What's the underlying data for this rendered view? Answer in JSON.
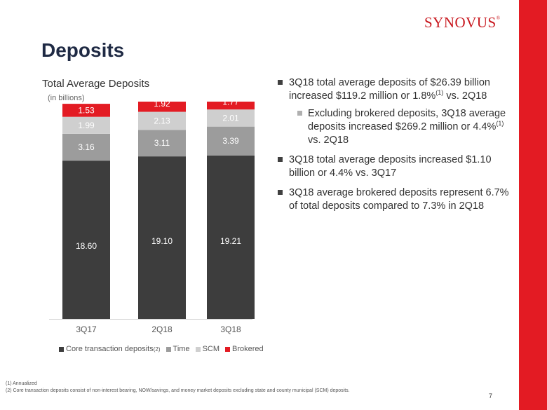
{
  "brand": {
    "logo_text": "SYNOVUS",
    "logo_mark": "®",
    "accent_color": "#e31b23"
  },
  "page": {
    "title": "Deposits",
    "number": "7"
  },
  "chart_data": {
    "type": "bar",
    "stacked": true,
    "title": "Total Average Deposits",
    "units_label": "(in billions)",
    "categories": [
      "3Q17",
      "2Q18",
      "3Q18"
    ],
    "totals": [
      "$25.29",
      "$26.27",
      "$26.39"
    ],
    "series": [
      {
        "name": "Core transaction deposits",
        "values": [
          18.6,
          19.1,
          19.21
        ],
        "labels": [
          "18.60",
          "19.10",
          "19.21"
        ],
        "color": "#3d3d3d",
        "label_color": "#ffffff"
      },
      {
        "name": "Time",
        "values": [
          3.16,
          3.11,
          3.39
        ],
        "labels": [
          "3.16",
          "3.11",
          "3.39"
        ],
        "color": "#9c9c9c",
        "label_color": "#ffffff"
      },
      {
        "name": "SCM",
        "values": [
          1.99,
          2.13,
          2.01
        ],
        "labels": [
          "1.99",
          "2.13",
          "2.01"
        ],
        "color": "#cfcfcf",
        "label_color": "#ffffff"
      },
      {
        "name": "Brokered",
        "values": [
          1.53,
          1.92,
          1.77
        ],
        "labels": [
          "1.53",
          "1.92",
          "1.77"
        ],
        "color": "#e31b23",
        "label_color": "#ffffff"
      }
    ],
    "legend": {
      "position": "bottom",
      "items": [
        {
          "label": "Core transaction deposits",
          "footnote": "(2)",
          "color": "#3d3d3d"
        },
        {
          "label": "Time",
          "color": "#9c9c9c"
        },
        {
          "label": "SCM",
          "color": "#cfcfcf"
        },
        {
          "label": "Brokered",
          "color": "#e31b23"
        }
      ]
    },
    "ylim": [
      0,
      26.39
    ]
  },
  "bullets": {
    "b1_text": "3Q18 total average deposits of $26.39 billion increased $119.2 million or 1.8%",
    "b1_sup": "(1)",
    "b1_tail": " vs. 2Q18",
    "b2_text": "Excluding brokered deposits, 3Q18 average deposits increased $269.2 million or 4.4%",
    "b2_sup": "(1)",
    "b2_tail": " vs. 2Q18",
    "b3_text": "3Q18 total average deposits increased $1.10 billion or 4.4% vs. 3Q17",
    "b4_text": "3Q18 average brokered deposits represent 6.7% of total deposits compared to 7.3% in 2Q18"
  },
  "footnotes": {
    "f1": "(1)   Annualized",
    "f2": "(2)   Core transaction deposits consist of non-interest bearing, NOW/savings, and money market deposits excluding state and county municipal (SCM) deposits."
  }
}
